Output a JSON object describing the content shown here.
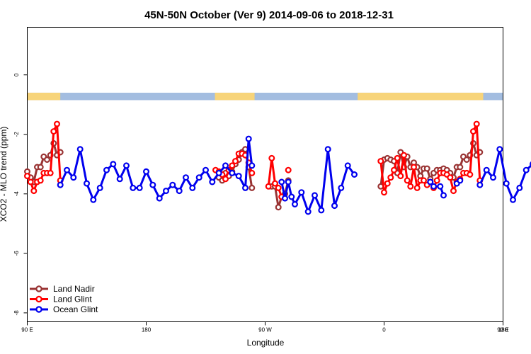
{
  "chart_data": {
    "type": "line",
    "title": "45N-50N October (Ver 9)   2014-09-06 to 2018-12-31",
    "xlabel": "Longitude",
    "ylabel": "XCO2 - MLO trend (ppm)",
    "xlim": [
      90,
      450
    ],
    "ylim": [
      -8.3,
      1.6
    ],
    "x_ticks": [
      {
        "value": 90,
        "label": "90 E"
      },
      {
        "value": 180,
        "label": "180"
      },
      {
        "value": 270,
        "label": "90 W"
      },
      {
        "value": 360,
        "label": "0"
      },
      {
        "value": 450,
        "label": "90 E"
      },
      {
        "value": 540,
        "label": "180"
      }
    ],
    "y_ticks": [
      {
        "value": 0,
        "label": "0"
      },
      {
        "value": -2,
        "label": "-2"
      },
      {
        "value": -4,
        "label": "-4"
      },
      {
        "value": -6,
        "label": "-6"
      },
      {
        "value": -8,
        "label": "-8"
      }
    ],
    "land_mask_band": {
      "y_range": [
        -0.85,
        -0.6
      ],
      "land_color": "#f7d47a",
      "ocean_color": "#a3bde0"
    },
    "legend_position": "bottom-left",
    "series": [
      {
        "name": "Land Nadir",
        "color": "#993333",
        "segments": [
          [
            [
              90,
              -3.25
            ],
            [
              92.5,
              -3.45
            ],
            [
              95,
              -3.6
            ],
            [
              97.5,
              -3.1
            ],
            [
              100,
              -3.1
            ],
            [
              102.5,
              -2.75
            ],
            [
              105,
              -2.85
            ],
            [
              107.5,
              -2.7
            ],
            [
              110,
              -2.3
            ],
            [
              112.5,
              -2.7
            ],
            [
              115,
              -2.6
            ]
          ],
          [
            [
              235,
              -3.45
            ],
            [
              237.5,
              -3.55
            ],
            [
              240,
              -3.3
            ],
            [
              242.5,
              -3.4
            ],
            [
              245,
              -3.25
            ],
            [
              247.5,
              -3.0
            ],
            [
              250,
              -2.85
            ],
            [
              252.5,
              -2.6
            ],
            [
              255,
              -2.5
            ],
            [
              257.5,
              -3.1
            ],
            [
              260,
              -3.8
            ]
          ],
          [
            [
              275,
              -3.75
            ],
            [
              277.5,
              -3.75
            ],
            [
              280,
              -4.45
            ],
            [
              282.5,
              -4.1
            ],
            [
              285,
              -4.0
            ],
            [
              287.5,
              -3.55
            ]
          ],
          [
            [
              357.5,
              -3.75
            ],
            [
              360,
              -2.85
            ],
            [
              362.5,
              -2.8
            ],
            [
              365,
              -2.85
            ],
            [
              367.5,
              -2.9
            ],
            [
              370,
              -3.3
            ],
            [
              372.5,
              -2.6
            ],
            [
              375,
              -3.1
            ],
            [
              377.5,
              -2.75
            ],
            [
              380,
              -3.1
            ],
            [
              382.5,
              -2.95
            ],
            [
              385,
              -3.1
            ],
            [
              387.5,
              -3.4
            ],
            [
              390,
              -3.15
            ],
            [
              392.5,
              -3.15
            ],
            [
              395,
              -3.5
            ],
            [
              397.5,
              -3.3
            ],
            [
              400,
              -3.2
            ],
            [
              402.5,
              -3.2
            ],
            [
              405,
              -3.15
            ],
            [
              407.5,
              -3.2
            ],
            [
              410,
              -3.3
            ],
            [
              412.5,
              -3.45
            ],
            [
              415,
              -3.1
            ],
            [
              417.5,
              -3.1
            ],
            [
              420,
              -2.75
            ],
            [
              422.5,
              -2.85
            ],
            [
              425,
              -2.7
            ],
            [
              427.5,
              -2.3
            ],
            [
              430,
              -2.7
            ],
            [
              432.5,
              -2.6
            ]
          ]
        ]
      },
      {
        "name": "Land Glint",
        "color": "#ff0000",
        "segments": [
          [
            [
              90,
              -3.4
            ],
            [
              92.5,
              -3.6
            ],
            [
              95,
              -3.9
            ],
            [
              97.5,
              -3.6
            ],
            [
              100,
              -3.55
            ],
            [
              102.5,
              -3.3
            ],
            [
              105,
              -3.3
            ],
            [
              107.5,
              -3.3
            ],
            [
              110,
              -1.9
            ],
            [
              112.5,
              -1.65
            ],
            [
              115,
              -3.55
            ]
          ],
          [
            [
              232.5,
              -3.2
            ],
            [
              235,
              -3.25
            ],
            [
              237.5,
              -3.35
            ],
            [
              240,
              -3.5
            ],
            [
              242.5,
              -3.2
            ],
            [
              245,
              -3.05
            ],
            [
              247.5,
              -2.9
            ],
            [
              250,
              -2.65
            ],
            [
              252.5,
              -2.65
            ],
            [
              255,
              -2.7
            ],
            [
              257.5,
              -2.95
            ],
            [
              260,
              -3.3
            ]
          ],
          [
            [
              272.5,
              -3.75
            ],
            [
              275,
              -2.8
            ],
            [
              277.5,
              -3.65
            ],
            [
              280,
              -3.8
            ],
            [
              282.5,
              -4.1
            ]
          ],
          [
            [
              287.5,
              -3.2
            ]
          ],
          [
            [
              357.5,
              -2.9
            ],
            [
              360,
              -3.95
            ],
            [
              362.5,
              -3.65
            ],
            [
              365,
              -3.45
            ],
            [
              367.5,
              -3.2
            ],
            [
              370,
              -2.8
            ],
            [
              372.5,
              -3.4
            ],
            [
              375,
              -2.7
            ],
            [
              377.5,
              -3.55
            ],
            [
              380,
              -3.75
            ],
            [
              382.5,
              -3.1
            ],
            [
              385,
              -3.8
            ],
            [
              387.5,
              -3.55
            ],
            [
              390,
              -3.55
            ],
            [
              392.5,
              -3.7
            ],
            [
              395,
              -3.6
            ],
            [
              397.5,
              -3.8
            ],
            [
              400,
              -3.55
            ],
            [
              402.5,
              -3.3
            ],
            [
              405,
              -3.3
            ],
            [
              407.5,
              -3.35
            ],
            [
              410,
              -3.45
            ],
            [
              412.5,
              -3.9
            ],
            [
              415,
              -3.6
            ],
            [
              417.5,
              -3.5
            ],
            [
              420,
              -3.3
            ],
            [
              422.5,
              -3.3
            ],
            [
              425,
              -3.35
            ],
            [
              427.5,
              -1.9
            ],
            [
              430,
              -1.65
            ],
            [
              432.5,
              -3.55
            ]
          ]
        ]
      },
      {
        "name": "Ocean Glint",
        "color": "#0000ee",
        "segments": [
          [
            [
              115,
              -3.7
            ],
            [
              120,
              -3.2
            ],
            [
              125,
              -3.45
            ],
            [
              130,
              -2.5
            ],
            [
              135,
              -3.65
            ],
            [
              140,
              -4.2
            ],
            [
              145,
              -3.8
            ],
            [
              150,
              -3.2
            ],
            [
              155,
              -3.0
            ],
            [
              160,
              -3.5
            ],
            [
              165,
              -3.05
            ],
            [
              170,
              -3.8
            ],
            [
              175,
              -3.8
            ],
            [
              180,
              -3.25
            ],
            [
              185,
              -3.7
            ],
            [
              190,
              -4.15
            ],
            [
              195,
              -3.9
            ],
            [
              200,
              -3.7
            ],
            [
              205,
              -3.9
            ],
            [
              210,
              -3.45
            ],
            [
              215,
              -3.8
            ],
            [
              220,
              -3.45
            ],
            [
              225,
              -3.2
            ],
            [
              230,
              -3.6
            ],
            [
              235,
              -3.3
            ],
            [
              240,
              -3.05
            ],
            [
              245,
              -3.3
            ],
            [
              250,
              -3.4
            ],
            [
              255,
              -3.8
            ],
            [
              257.5,
              -2.15
            ],
            [
              260,
              -3.05
            ]
          ],
          [
            [
              282.5,
              -3.6
            ],
            [
              285,
              -4.15
            ],
            [
              287.5,
              -3.6
            ],
            [
              290,
              -4.1
            ],
            [
              292.5,
              -4.35
            ],
            [
              297.5,
              -3.95
            ],
            [
              302.5,
              -4.6
            ],
            [
              307.5,
              -4.05
            ],
            [
              312.5,
              -4.55
            ],
            [
              317.5,
              -2.5
            ],
            [
              322.5,
              -4.4
            ],
            [
              327.5,
              -3.8
            ],
            [
              332.5,
              -3.05
            ],
            [
              337.5,
              -3.35
            ]
          ],
          [
            [
              395,
              -3.6
            ],
            [
              397.5,
              -3.75
            ],
            [
              402.5,
              -3.75
            ],
            [
              405,
              -4.05
            ]
          ],
          [
            [
              415,
              -3.65
            ],
            [
              417.5,
              -3.55
            ]
          ],
          [
            [
              432.5,
              -3.7
            ],
            [
              437.5,
              -3.2
            ],
            [
              442.5,
              -3.45
            ],
            [
              447.5,
              -2.5
            ],
            [
              452.5,
              -3.65
            ],
            [
              457.5,
              -4.2
            ],
            [
              462.5,
              -3.8
            ],
            [
              467.5,
              -3.2
            ],
            [
              472.5,
              -3.0
            ]
          ]
        ]
      }
    ]
  }
}
